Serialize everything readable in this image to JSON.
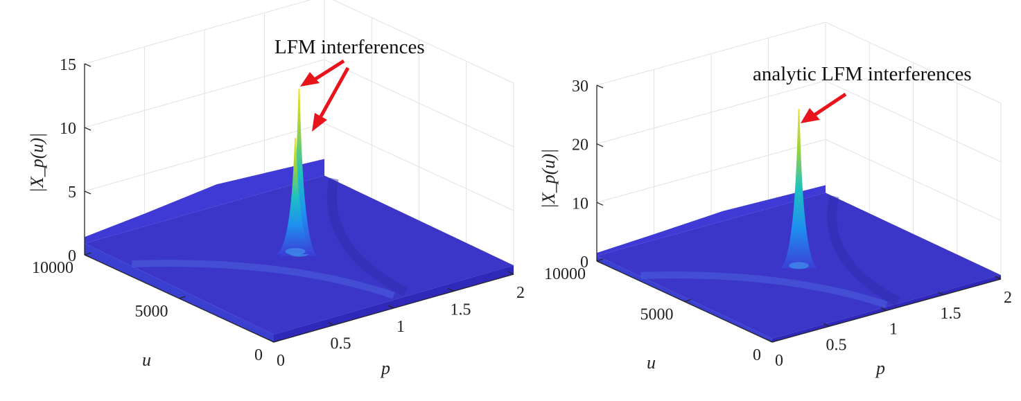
{
  "chart_data": [
    {
      "type": "surface",
      "title": "",
      "xlabel": "p",
      "ylabel": "u",
      "zlabel": "|X_p(u)|",
      "xlim": [
        0,
        2
      ],
      "ylim": [
        0,
        10000
      ],
      "zlim": [
        0,
        15
      ],
      "x_ticks": [
        "0",
        "0.5",
        "1",
        "1.5",
        "2"
      ],
      "y_ticks": [
        "0",
        "5000",
        "10000"
      ],
      "z_ticks": [
        "0",
        "5",
        "10",
        "15"
      ],
      "grid": true,
      "colormap": "parula",
      "surface_base_level": 1,
      "peaks": [
        {
          "p": 1.0,
          "u": 5000,
          "value": 13.8
        },
        {
          "p": 1.0,
          "u": 5200,
          "value": 9.8
        }
      ],
      "annotation": "LFM interferences"
    },
    {
      "type": "surface",
      "title": "",
      "xlabel": "p",
      "ylabel": "u",
      "zlabel": "|X_p(u)|",
      "xlim": [
        0,
        2
      ],
      "ylim": [
        0,
        10000
      ],
      "zlim": [
        0,
        30
      ],
      "x_ticks": [
        "0",
        "0.5",
        "1",
        "1.5",
        "2"
      ],
      "y_ticks": [
        "0",
        "5000",
        "10000"
      ],
      "z_ticks": [
        "0",
        "10",
        "20",
        "30"
      ],
      "grid": true,
      "colormap": "parula",
      "surface_base_level": 1,
      "peaks": [
        {
          "p": 1.0,
          "u": 5000,
          "value": 27.5
        }
      ],
      "annotation": "analytic LFM interferences"
    }
  ],
  "colors": {
    "surface": "#3b36c8",
    "surface_dark": "#3028b8",
    "arrow": "#e8141c",
    "axis": "#262626",
    "grid": "#e2e2e2"
  }
}
